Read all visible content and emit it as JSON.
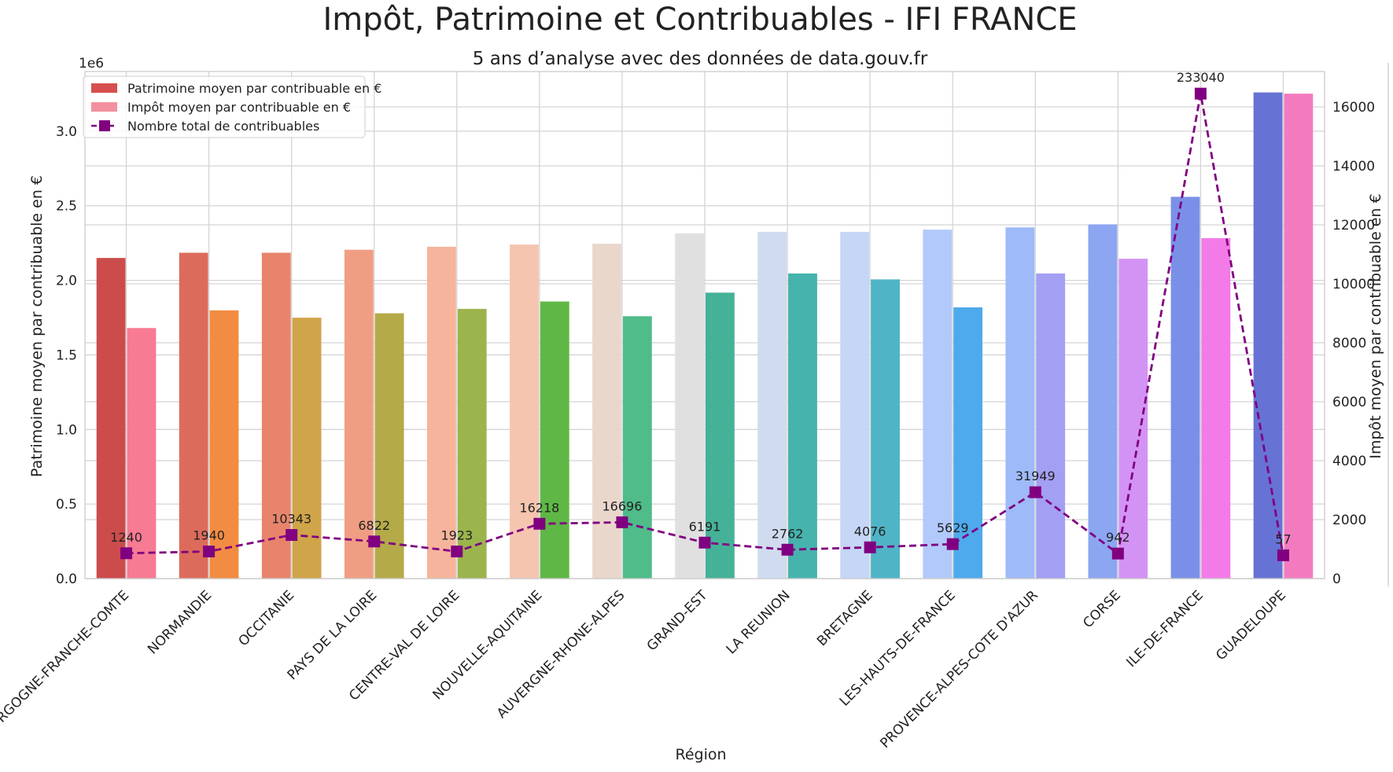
{
  "chart_data": {
    "type": "bar",
    "title": "Impôt, Patrimoine et Contribuables - IFI FRANCE",
    "subtitle": "5 ans d’analyse avec des données de data.gouv.fr",
    "xlabel": "Région",
    "ylabel_left": "Patrimoine moyen par contribuable en €",
    "ylabel_right": "Impôt moyen par contribuable en €",
    "left_offset_text": "1e6",
    "left_ylim": [
      0,
      3.4
    ],
    "left_scale": 1000000,
    "left_ticks": [
      0.0,
      0.5,
      1.0,
      1.5,
      2.0,
      2.5,
      3.0
    ],
    "left_tick_labels": [
      "0.0",
      "0.5",
      "1.0",
      "1.5",
      "2.0",
      "2.5",
      "3.0"
    ],
    "right_ylim": [
      0,
      17200
    ],
    "right_ticks": [
      0,
      2000,
      4000,
      6000,
      8000,
      10000,
      12000,
      14000,
      16000
    ],
    "right_tick_labels": [
      "0",
      "2000",
      "4000",
      "6000",
      "8000",
      "10000",
      "12000",
      "14000",
      "16000"
    ],
    "grid": true,
    "legend_placement": "top-left",
    "categories": [
      "BOURGOGNE-FRANCHE-COMTE",
      "NORMANDIE",
      "OCCITANIE",
      "PAYS DE LA LOIRE",
      "CENTRE-VAL DE LOIRE",
      "NOUVELLE-AQUITAINE",
      "AUVERGNE-RHONE-ALPES",
      "GRAND-EST",
      "LA REUNION",
      "BRETAGNE",
      "LES-HAUTS-DE-FRANCE",
      "PROVENCE-ALPES-COTE D'AZUR",
      "CORSE",
      "ILE-DE-FRANCE",
      "GUADELOUPE"
    ],
    "series": [
      {
        "name": "Patrimoine moyen par contribuable en €",
        "axis": "left",
        "values": [
          2150000,
          2185000,
          2185000,
          2205000,
          2225000,
          2240000,
          2245000,
          2315000,
          2325000,
          2325000,
          2340000,
          2355000,
          2375000,
          2560000,
          3260000
        ],
        "colors": [
          "#cc4c4c",
          "#dd6b5b",
          "#e8846c",
          "#f09e83",
          "#f5b49b",
          "#f5c5b0",
          "#ead7cc",
          "#e0e0e0",
          "#d0dbef",
          "#c5d6f7",
          "#b2c9fb",
          "#9fbaf9",
          "#8da6f2",
          "#7a90e8",
          "#6673d5"
        ],
        "legend_color": "#d64f4f"
      },
      {
        "name": "Impôt moyen par contribuable en €",
        "axis": "right",
        "values": [
          8500,
          9100,
          8850,
          9000,
          9150,
          9400,
          8900,
          9700,
          10350,
          10150,
          9200,
          10350,
          10850,
          11550,
          16450
        ],
        "colors": [
          "#f77b93",
          "#f28c42",
          "#d0a449",
          "#b5aa48",
          "#9cb44c",
          "#5fb846",
          "#4fbc89",
          "#45b298",
          "#46b3ad",
          "#50b4c7",
          "#4eaaec",
          "#a39ff3",
          "#d393f4",
          "#f27be8",
          "#f47ac0"
        ],
        "legend_color": "#f3909f"
      },
      {
        "name": "Nombre total de contribuables",
        "axis": "right",
        "type": "line",
        "style": "dashed",
        "marker": "square",
        "color": "#800080",
        "values": [
          860,
          920,
          1480,
          1260,
          920,
          1860,
          1910,
          1220,
          980,
          1060,
          1170,
          2930,
          850,
          16450,
          790
        ],
        "labels": [
          "1240",
          "1940",
          "10343",
          "6822",
          "1923",
          "16218",
          "16696",
          "6191",
          "2762",
          "4076",
          "5629",
          "31949",
          "942",
          "233040",
          "57"
        ]
      }
    ]
  }
}
